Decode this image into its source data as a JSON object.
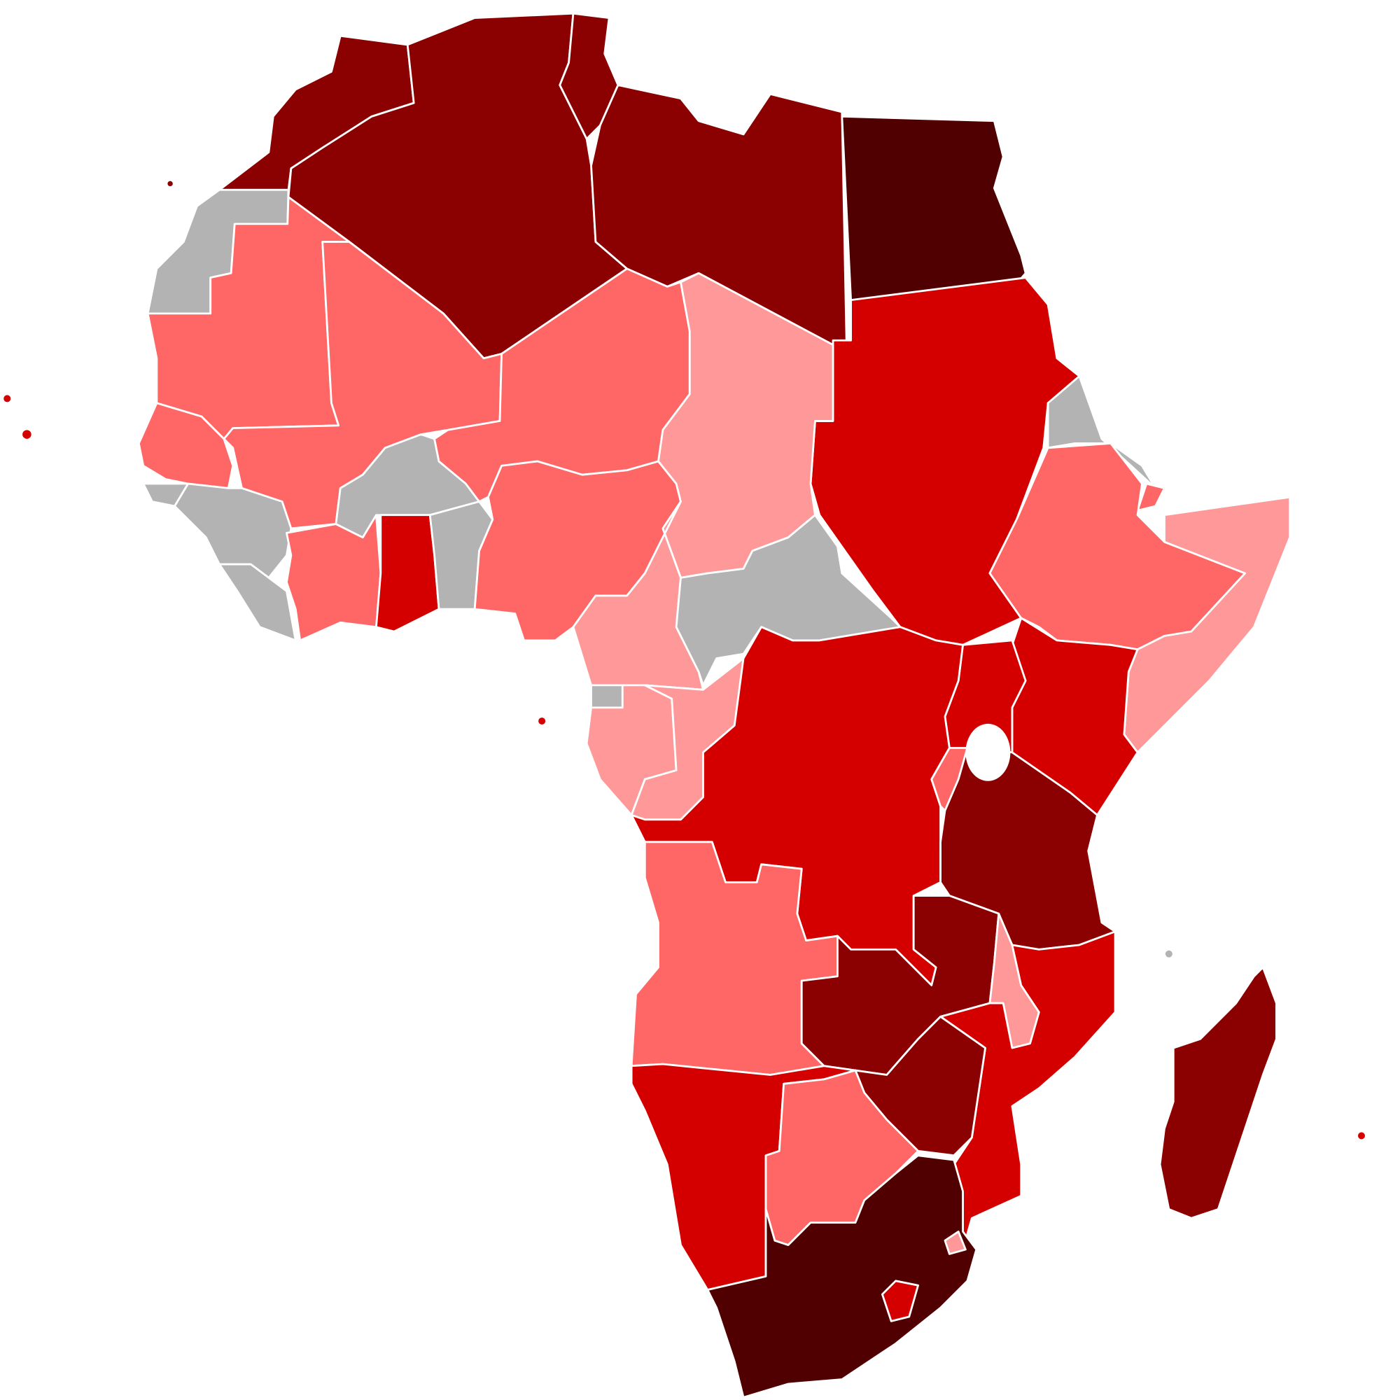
{
  "map": {
    "colors": [
      "#500000",
      "#8b0000",
      "#d40000",
      "#ff6666",
      "#ff9999",
      "#b3b3b3"
    ]
  }
}
